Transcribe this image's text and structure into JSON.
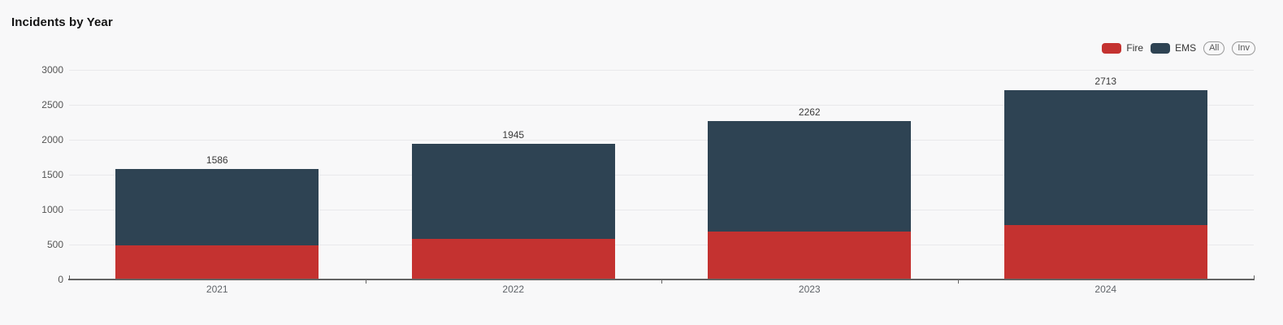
{
  "title": "Incidents by Year",
  "legend": {
    "items": [
      {
        "label": "Fire",
        "color": "#c43230"
      },
      {
        "label": "EMS",
        "color": "#2e4353"
      }
    ],
    "buttons": [
      {
        "label": "All"
      },
      {
        "label": "Inv"
      }
    ]
  },
  "chart_data": {
    "type": "bar",
    "stacked": true,
    "title": "Incidents by Year",
    "categories": [
      "2021",
      "2022",
      "2023",
      "2024"
    ],
    "series": [
      {
        "name": "Fire",
        "color": "#c43230",
        "values": [
          485,
          580,
          690,
          775
        ]
      },
      {
        "name": "EMS",
        "color": "#2e4353",
        "values": [
          1101,
          1365,
          1572,
          1938
        ]
      }
    ],
    "totals": [
      1586,
      1945,
      2262,
      2713
    ],
    "total_labels_shown": true,
    "xlabel": "",
    "ylabel": "",
    "y_axis": {
      "min": 0,
      "max": 3000,
      "tick_interval": 500,
      "ticks": [
        0,
        500,
        1000,
        1500,
        2000,
        2500,
        3000
      ]
    },
    "grid": true,
    "legend_position": "top-right",
    "colors": {
      "background": "#f8f8f9",
      "gridline": "#e9e9eb",
      "axis": "#636363",
      "tick_text": "#555555",
      "value_label_text": "#3a3a3a"
    }
  }
}
